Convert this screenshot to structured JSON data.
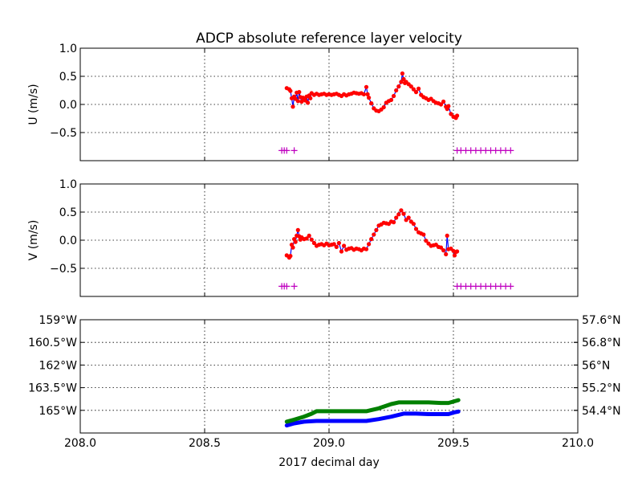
{
  "chart_data": {
    "title": "ADCP absolute reference layer velocity",
    "xlabel": "2017 decimal day",
    "xlim": [
      208.0,
      210.0
    ],
    "x_ticks": [
      208.0,
      208.5,
      209.0,
      209.5,
      210.0
    ],
    "x_tick_labels": [
      "208.0",
      "208.5",
      "209.0",
      "209.5",
      "210.0"
    ],
    "grid": true,
    "panels": [
      {
        "id": "u",
        "type": "scatter",
        "ylabel": "U (m/s)",
        "ylim": [
          -1.0,
          1.0
        ],
        "y_ticks": [
          1.0,
          0.5,
          0.0,
          -0.5
        ],
        "y_tick_labels": [
          "1.0",
          "0.5",
          "0.0",
          "−0.5"
        ],
        "series": [
          {
            "kind": "line_points",
            "line_color": "#0000ff",
            "point_color": "#ff0000",
            "points": [
              [
                208.83,
                0.29
              ],
              [
                208.84,
                0.27
              ],
              [
                208.845,
                0.24
              ],
              [
                208.85,
                0.11
              ],
              [
                208.855,
                -0.04
              ],
              [
                208.86,
                0.14
              ],
              [
                208.865,
                0.1
              ],
              [
                208.87,
                0.21
              ],
              [
                208.875,
                0.06
              ],
              [
                208.88,
                0.22
              ],
              [
                208.885,
                0.13
              ],
              [
                208.89,
                0.05
              ],
              [
                208.895,
                0.12
              ],
              [
                208.9,
                0.1
              ],
              [
                208.905,
                0.07
              ],
              [
                208.91,
                0.14
              ],
              [
                208.915,
                0.03
              ],
              [
                208.92,
                0.16
              ],
              [
                208.925,
                0.11
              ],
              [
                208.93,
                0.2
              ],
              [
                208.94,
                0.17
              ],
              [
                208.95,
                0.19
              ],
              [
                208.96,
                0.17
              ],
              [
                208.97,
                0.18
              ],
              [
                208.98,
                0.19
              ],
              [
                208.99,
                0.17
              ],
              [
                209.0,
                0.18
              ],
              [
                209.01,
                0.17
              ],
              [
                209.02,
                0.18
              ],
              [
                209.03,
                0.19
              ],
              [
                209.04,
                0.17
              ],
              [
                209.05,
                0.15
              ],
              [
                209.06,
                0.18
              ],
              [
                209.07,
                0.16
              ],
              [
                209.08,
                0.18
              ],
              [
                209.09,
                0.19
              ],
              [
                209.1,
                0.21
              ],
              [
                209.11,
                0.2
              ],
              [
                209.12,
                0.19
              ],
              [
                209.13,
                0.2
              ],
              [
                209.14,
                0.18
              ],
              [
                209.15,
                0.31
              ],
              [
                209.155,
                0.18
              ],
              [
                209.16,
                0.12
              ],
              [
                209.17,
                0.02
              ],
              [
                209.18,
                -0.07
              ],
              [
                209.19,
                -0.11
              ],
              [
                209.2,
                -0.12
              ],
              [
                209.21,
                -0.09
              ],
              [
                209.22,
                -0.05
              ],
              [
                209.23,
                0.03
              ],
              [
                209.24,
                0.06
              ],
              [
                209.25,
                0.08
              ],
              [
                209.26,
                0.15
              ],
              [
                209.27,
                0.25
              ],
              [
                209.28,
                0.32
              ],
              [
                209.29,
                0.4
              ],
              [
                209.295,
                0.55
              ],
              [
                209.3,
                0.45
              ],
              [
                209.305,
                0.38
              ],
              [
                209.31,
                0.4
              ],
              [
                209.32,
                0.36
              ],
              [
                209.33,
                0.32
              ],
              [
                209.34,
                0.27
              ],
              [
                209.35,
                0.22
              ],
              [
                209.36,
                0.28
              ],
              [
                209.37,
                0.17
              ],
              [
                209.38,
                0.13
              ],
              [
                209.39,
                0.11
              ],
              [
                209.4,
                0.08
              ],
              [
                209.41,
                0.1
              ],
              [
                209.42,
                0.06
              ],
              [
                209.43,
                0.03
              ],
              [
                209.44,
                0.02
              ],
              [
                209.45,
                0.0
              ],
              [
                209.46,
                0.05
              ],
              [
                209.47,
                -0.04
              ],
              [
                209.475,
                -0.08
              ],
              [
                209.48,
                -0.03
              ],
              [
                209.49,
                -0.17
              ],
              [
                209.5,
                -0.22
              ],
              [
                209.51,
                -0.24
              ],
              [
                209.515,
                -0.2
              ]
            ]
          },
          {
            "kind": "plus_markers",
            "color": "#bf00bf",
            "y": -0.82,
            "x": [
              208.81,
              208.82,
              208.83,
              208.86,
              209.515,
              209.53,
              209.55,
              209.57,
              209.59,
              209.61,
              209.63,
              209.65,
              209.67,
              209.69,
              209.71,
              209.73
            ]
          }
        ]
      },
      {
        "id": "v",
        "type": "scatter",
        "ylabel": "V (m/s)",
        "ylim": [
          -1.0,
          1.0
        ],
        "y_ticks": [
          1.0,
          0.5,
          0.0,
          -0.5
        ],
        "y_tick_labels": [
          "1.0",
          "0.5",
          "0.0",
          "−0.5"
        ],
        "series": [
          {
            "kind": "line_points",
            "line_color": "#0000ff",
            "point_color": "#ff0000",
            "points": [
              [
                208.83,
                -0.27
              ],
              [
                208.84,
                -0.31
              ],
              [
                208.845,
                -0.28
              ],
              [
                208.85,
                -0.08
              ],
              [
                208.855,
                -0.13
              ],
              [
                208.86,
                0.02
              ],
              [
                208.865,
                -0.03
              ],
              [
                208.87,
                0.08
              ],
              [
                208.875,
                0.18
              ],
              [
                208.88,
                0.07
              ],
              [
                208.885,
                0.01
              ],
              [
                208.89,
                0.05
              ],
              [
                208.9,
                0.02
              ],
              [
                208.91,
                0.03
              ],
              [
                208.92,
                0.08
              ],
              [
                208.93,
                0.01
              ],
              [
                208.94,
                -0.05
              ],
              [
                208.95,
                -0.1
              ],
              [
                208.96,
                -0.08
              ],
              [
                208.97,
                -0.07
              ],
              [
                208.98,
                -0.09
              ],
              [
                208.99,
                -0.06
              ],
              [
                209.0,
                -0.09
              ],
              [
                209.01,
                -0.08
              ],
              [
                209.02,
                -0.07
              ],
              [
                209.03,
                -0.12
              ],
              [
                209.04,
                -0.05
              ],
              [
                209.05,
                -0.2
              ],
              [
                209.06,
                -0.1
              ],
              [
                209.07,
                -0.17
              ],
              [
                209.08,
                -0.15
              ],
              [
                209.09,
                -0.14
              ],
              [
                209.1,
                -0.17
              ],
              [
                209.11,
                -0.15
              ],
              [
                209.12,
                -0.16
              ],
              [
                209.13,
                -0.18
              ],
              [
                209.14,
                -0.15
              ],
              [
                209.15,
                -0.16
              ],
              [
                209.16,
                -0.07
              ],
              [
                209.17,
                0.02
              ],
              [
                209.18,
                0.1
              ],
              [
                209.19,
                0.18
              ],
              [
                209.2,
                0.26
              ],
              [
                209.21,
                0.28
              ],
              [
                209.22,
                0.31
              ],
              [
                209.23,
                0.3
              ],
              [
                209.24,
                0.29
              ],
              [
                209.25,
                0.33
              ],
              [
                209.26,
                0.32
              ],
              [
                209.27,
                0.4
              ],
              [
                209.28,
                0.46
              ],
              [
                209.29,
                0.53
              ],
              [
                209.3,
                0.47
              ],
              [
                209.31,
                0.36
              ],
              [
                209.32,
                0.4
              ],
              [
                209.33,
                0.33
              ],
              [
                209.34,
                0.29
              ],
              [
                209.35,
                0.2
              ],
              [
                209.36,
                0.14
              ],
              [
                209.37,
                0.12
              ],
              [
                209.38,
                0.1
              ],
              [
                209.39,
                -0.01
              ],
              [
                209.4,
                -0.06
              ],
              [
                209.41,
                -0.1
              ],
              [
                209.42,
                -0.09
              ],
              [
                209.43,
                -0.08
              ],
              [
                209.44,
                -0.12
              ],
              [
                209.45,
                -0.13
              ],
              [
                209.46,
                -0.18
              ],
              [
                209.47,
                -0.25
              ],
              [
                209.475,
                0.08
              ],
              [
                209.48,
                -0.16
              ],
              [
                209.49,
                -0.15
              ],
              [
                209.5,
                -0.19
              ],
              [
                209.505,
                -0.27
              ],
              [
                209.51,
                -0.21
              ],
              [
                209.515,
                -0.2
              ]
            ]
          },
          {
            "kind": "plus_markers",
            "color": "#bf00bf",
            "y": -0.82,
            "x": [
              208.81,
              208.82,
              208.83,
              208.86,
              209.515,
              209.53,
              209.55,
              209.57,
              209.59,
              209.61,
              209.63,
              209.65,
              209.67,
              209.69,
              209.71,
              209.73
            ]
          }
        ]
      },
      {
        "id": "position",
        "type": "line",
        "ylim_left": [
          -166.5,
          -159.0
        ],
        "ylim_right": [
          53.6,
          57.6
        ],
        "y_left_ticks": [
          -159.0,
          -160.5,
          -162.0,
          -163.5,
          -165.0
        ],
        "y_left_tick_labels": [
          "159°W",
          "160.5°W",
          "162°W",
          "163.5°W",
          "165°W"
        ],
        "y_left_color": "#0000ff",
        "y_right_ticks": [
          57.6,
          56.8,
          56.0,
          55.2,
          54.4
        ],
        "y_right_tick_labels": [
          "57.6°N",
          "56.8°N",
          "56°N",
          "55.2°N",
          "54.4°N"
        ],
        "y_right_color": "#008000",
        "series": [
          {
            "axis": "left",
            "color": "#0000ff",
            "quantity": "longitude",
            "x": [
              208.83,
              208.86,
              208.9,
              208.95,
              209.0,
              209.05,
              209.1,
              209.15,
              209.2,
              209.25,
              209.3,
              209.35,
              209.4,
              209.45,
              209.48,
              209.5,
              209.52
            ],
            "values": [
              -166.0,
              -165.86,
              -165.75,
              -165.7,
              -165.7,
              -165.7,
              -165.7,
              -165.7,
              -165.58,
              -165.42,
              -165.22,
              -165.22,
              -165.25,
              -165.25,
              -165.25,
              -165.15,
              -165.08
            ]
          },
          {
            "axis": "right",
            "color": "#008000",
            "quantity": "latitude",
            "x": [
              208.83,
              208.86,
              208.9,
              208.93,
              208.95,
              209.0,
              209.05,
              209.1,
              209.15,
              209.2,
              209.25,
              209.28,
              209.3,
              209.35,
              209.4,
              209.45,
              209.48,
              209.5,
              209.52
            ],
            "values": [
              54.0,
              54.07,
              54.18,
              54.28,
              54.37,
              54.37,
              54.37,
              54.37,
              54.37,
              54.47,
              54.62,
              54.68,
              54.68,
              54.68,
              54.68,
              54.66,
              54.66,
              54.71,
              54.76
            ]
          }
        ]
      }
    ]
  }
}
